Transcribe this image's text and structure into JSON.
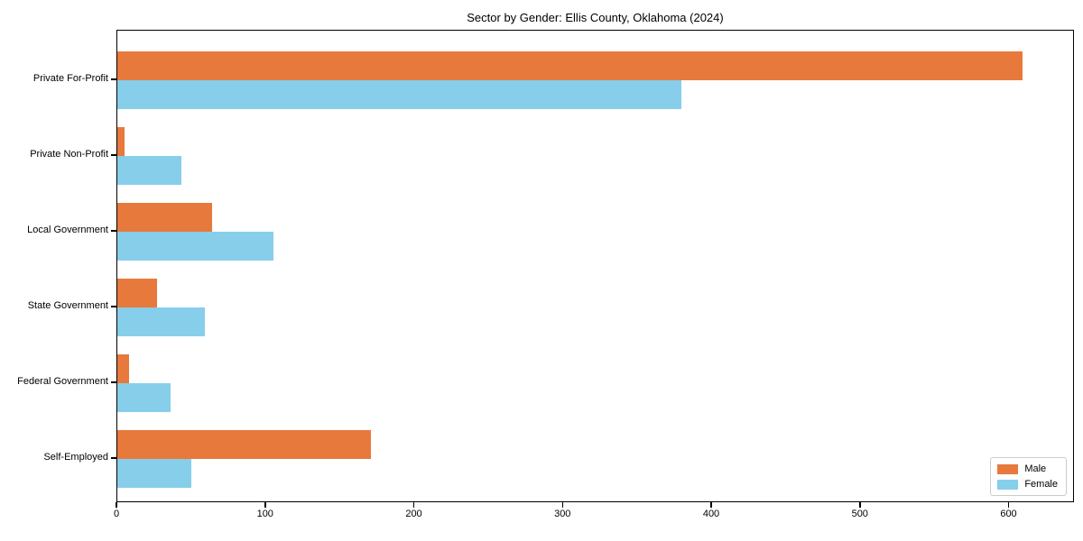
{
  "title": "Sector by Gender: Ellis County, Oklahoma (2024)",
  "chart_data": {
    "type": "bar",
    "orientation": "horizontal",
    "title": "Sector by Gender: Ellis County, Oklahoma (2024)",
    "categories": [
      "Private For-Profit",
      "Private Non-Profit",
      "Local Government",
      "State Government",
      "Federal Government",
      "Self-Employed"
    ],
    "series": [
      {
        "name": "Male",
        "color": "#E8793C",
        "values": [
          610,
          5,
          64,
          27,
          8,
          171
        ]
      },
      {
        "name": "Female",
        "color": "#87CEEB",
        "values": [
          380,
          43,
          105,
          59,
          36,
          50
        ]
      }
    ],
    "xlabel": "",
    "ylabel": "",
    "x_ticks": [
      0,
      100,
      200,
      300,
      400,
      500,
      600
    ],
    "xlim": [
      0,
      644
    ],
    "grid": false,
    "legend_position": "lower right",
    "legend_labels": [
      "Male",
      "Female"
    ]
  }
}
